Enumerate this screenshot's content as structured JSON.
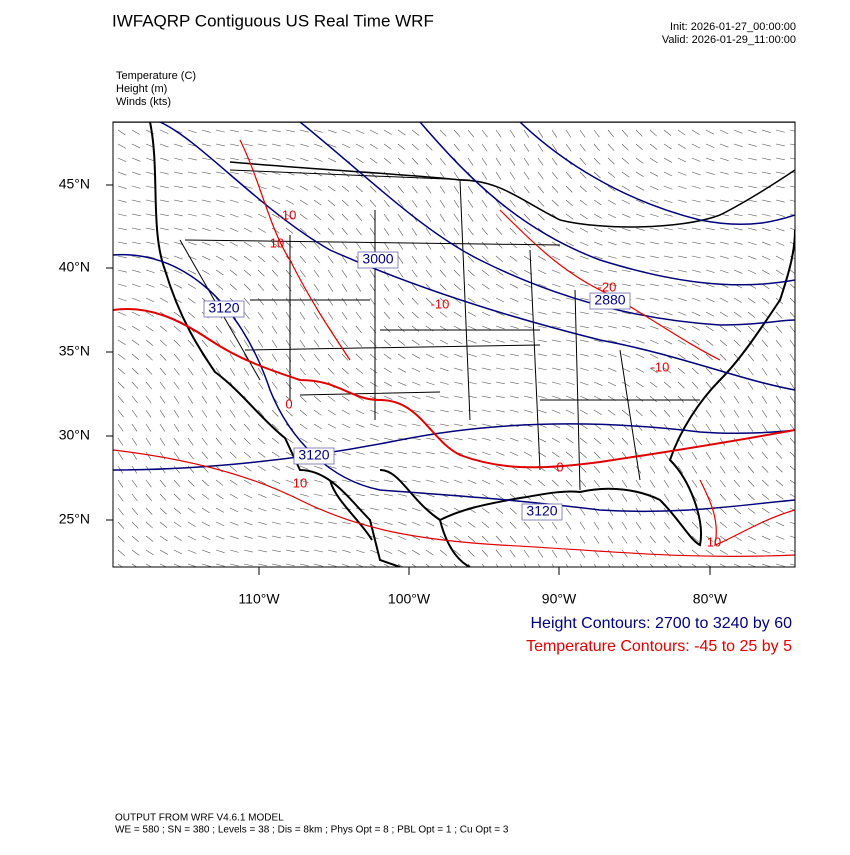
{
  "header": {
    "title": "IWFAQRP Contiguous US Real Time WRF",
    "init": "Init: 2026-01-27_00:00:00",
    "valid": "Valid: 2026-01-29_11:00:00"
  },
  "fields": [
    "Temperature   (C)",
    "Height   (m)",
    "Winds   (kts)"
  ],
  "map": {
    "lat_labels": [
      "45°N",
      "40°N",
      "35°N",
      "30°N",
      "25°N"
    ],
    "lon_labels": [
      "110°W",
      "100°W",
      "90°W",
      "80°W"
    ],
    "height_labels": [
      "3120",
      "3000",
      "2880",
      "3120",
      "3120"
    ],
    "temperature_labels": [
      "-10",
      "10",
      "-10",
      "-20",
      "-10",
      "0",
      "0",
      "10",
      "10"
    ]
  },
  "legend": {
    "height": "Height Contours: 2700 to 3240 by 60",
    "temperature": "Temperature Contours: -45 to 25 by 5"
  },
  "footer": {
    "model": "OUTPUT FROM WRF V4.6.1 MODEL",
    "settings": "WE = 580 ; SN = 380 ; Levels = 38 ; Dis = 8km ; Phys Opt = 8 ; PBL Opt = 1 ; Cu Opt = 3"
  }
}
